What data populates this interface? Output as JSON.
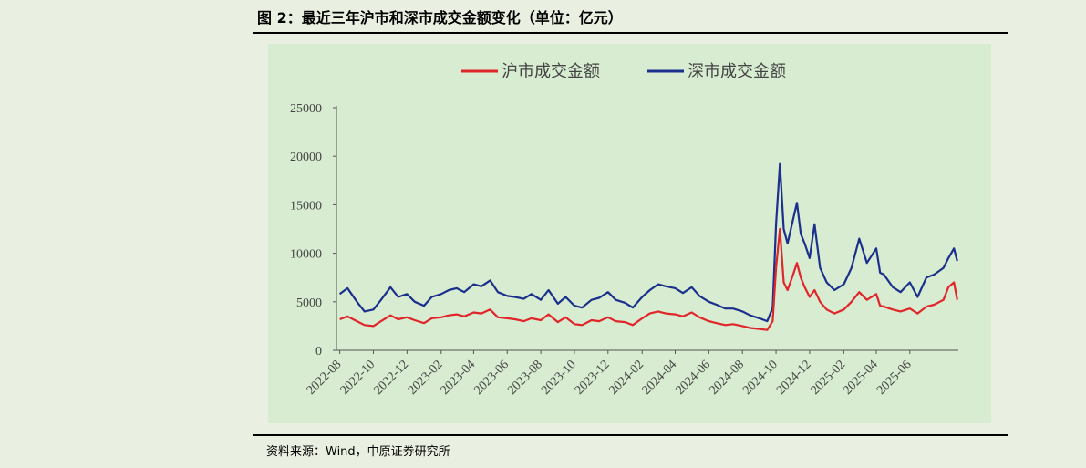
{
  "figure": {
    "title": "图 2：最近三年沪市和深市成交金额变化（单位：亿元）",
    "source": "资料来源：Wind，中原证券研究所"
  },
  "chart_data": {
    "type": "line",
    "title": "",
    "xlabel": "",
    "ylabel": "",
    "ylim": [
      0,
      25000
    ],
    "yticks": [
      0,
      5000,
      10000,
      15000,
      20000,
      25000
    ],
    "xticks": [
      "2022-08",
      "2022-10",
      "2022-12",
      "2023-02",
      "2023-04",
      "2023-06",
      "2023-08",
      "2023-10",
      "2023-12",
      "2024-02",
      "2024-04",
      "2024-06",
      "2024-08",
      "2024-10",
      "2024-12",
      "2025-02",
      "2025-04",
      "2025-06"
    ],
    "legend": "top",
    "colors": {
      "sh": "#e0262a",
      "sz": "#1b2f8c"
    },
    "series": [
      {
        "name": "沪市成交金额",
        "x": [
          "2022-08-01",
          "2022-08-15",
          "2022-09-01",
          "2022-09-15",
          "2022-10-01",
          "2022-10-15",
          "2022-11-01",
          "2022-11-15",
          "2022-12-01",
          "2022-12-15",
          "2023-01-01",
          "2023-01-15",
          "2023-02-01",
          "2023-02-15",
          "2023-03-01",
          "2023-03-15",
          "2023-04-01",
          "2023-04-15",
          "2023-05-01",
          "2023-05-15",
          "2023-06-01",
          "2023-06-15",
          "2023-07-01",
          "2023-07-15",
          "2023-08-01",
          "2023-08-15",
          "2023-09-01",
          "2023-09-15",
          "2023-10-01",
          "2023-10-15",
          "2023-11-01",
          "2023-11-15",
          "2023-12-01",
          "2023-12-15",
          "2024-01-01",
          "2024-01-15",
          "2024-02-01",
          "2024-02-15",
          "2024-03-01",
          "2024-03-15",
          "2024-04-01",
          "2024-04-15",
          "2024-05-01",
          "2024-05-15",
          "2024-06-01",
          "2024-06-15",
          "2024-07-01",
          "2024-07-15",
          "2024-08-01",
          "2024-08-15",
          "2024-09-01",
          "2024-09-15",
          "2024-09-25",
          "2024-10-01",
          "2024-10-08",
          "2024-10-15",
          "2024-10-22",
          "2024-11-01",
          "2024-11-08",
          "2024-11-15",
          "2024-11-22",
          "2024-12-01",
          "2024-12-10",
          "2024-12-20",
          "2025-01-01",
          "2025-01-15",
          "2025-02-01",
          "2025-02-15",
          "2025-03-01",
          "2025-03-15",
          "2025-04-01",
          "2025-04-08",
          "2025-04-15",
          "2025-05-01",
          "2025-05-15",
          "2025-06-01",
          "2025-06-15",
          "2025-07-01",
          "2025-07-15",
          "2025-08-01",
          "2025-08-10",
          "2025-08-20",
          "2025-08-26"
        ],
        "values": [
          3200,
          3500,
          3000,
          2600,
          2500,
          3000,
          3600,
          3200,
          3400,
          3100,
          2800,
          3300,
          3400,
          3600,
          3700,
          3500,
          3900,
          3800,
          4200,
          3400,
          3300,
          3200,
          3000,
          3300,
          3100,
          3700,
          2900,
          3400,
          2700,
          2600,
          3100,
          3000,
          3400,
          3000,
          2900,
          2600,
          3300,
          3800,
          4000,
          3800,
          3700,
          3500,
          3900,
          3400,
          3000,
          2800,
          2600,
          2700,
          2500,
          2300,
          2200,
          2100,
          3000,
          8500,
          12500,
          7000,
          6200,
          7800,
          9000,
          7500,
          6500,
          5500,
          6200,
          5000,
          4200,
          3800,
          4200,
          5000,
          6000,
          5200,
          5800,
          4600,
          4500,
          4200,
          4000,
          4300,
          3800,
          4500,
          4700,
          5200,
          6500,
          7000,
          5200
        ]
      },
      {
        "name": "深市成交金额",
        "x": [
          "2022-08-01",
          "2022-08-15",
          "2022-09-01",
          "2022-09-15",
          "2022-10-01",
          "2022-10-15",
          "2022-11-01",
          "2022-11-15",
          "2022-12-01",
          "2022-12-15",
          "2023-01-01",
          "2023-01-15",
          "2023-02-01",
          "2023-02-15",
          "2023-03-01",
          "2023-03-15",
          "2023-04-01",
          "2023-04-15",
          "2023-05-01",
          "2023-05-15",
          "2023-06-01",
          "2023-06-15",
          "2023-07-01",
          "2023-07-15",
          "2023-08-01",
          "2023-08-15",
          "2023-09-01",
          "2023-09-15",
          "2023-10-01",
          "2023-10-15",
          "2023-11-01",
          "2023-11-15",
          "2023-12-01",
          "2023-12-15",
          "2024-01-01",
          "2024-01-15",
          "2024-02-01",
          "2024-02-15",
          "2024-03-01",
          "2024-03-15",
          "2024-04-01",
          "2024-04-15",
          "2024-05-01",
          "2024-05-15",
          "2024-06-01",
          "2024-06-15",
          "2024-07-01",
          "2024-07-15",
          "2024-08-01",
          "2024-08-15",
          "2024-09-01",
          "2024-09-15",
          "2024-09-25",
          "2024-10-01",
          "2024-10-08",
          "2024-10-15",
          "2024-10-22",
          "2024-11-01",
          "2024-11-08",
          "2024-11-15",
          "2024-11-22",
          "2024-12-01",
          "2024-12-10",
          "2024-12-20",
          "2025-01-01",
          "2025-01-15",
          "2025-02-01",
          "2025-02-15",
          "2025-03-01",
          "2025-03-15",
          "2025-04-01",
          "2025-04-08",
          "2025-04-15",
          "2025-05-01",
          "2025-05-15",
          "2025-06-01",
          "2025-06-15",
          "2025-07-01",
          "2025-07-15",
          "2025-08-01",
          "2025-08-10",
          "2025-08-20",
          "2025-08-26"
        ],
        "values": [
          5800,
          6400,
          5000,
          4000,
          4200,
          5200,
          6500,
          5500,
          5800,
          5000,
          4600,
          5500,
          5800,
          6200,
          6400,
          6000,
          6800,
          6600,
          7200,
          6000,
          5600,
          5500,
          5300,
          5800,
          5200,
          6200,
          4800,
          5500,
          4600,
          4400,
          5200,
          5400,
          6000,
          5200,
          4900,
          4400,
          5500,
          6200,
          6800,
          6600,
          6400,
          5900,
          6500,
          5600,
          5000,
          4700,
          4300,
          4300,
          4000,
          3600,
          3300,
          3000,
          4400,
          13000,
          19200,
          12500,
          11000,
          13500,
          15200,
          12000,
          11000,
          9500,
          13000,
          8500,
          7000,
          6200,
          6800,
          8500,
          11500,
          9000,
          10500,
          8000,
          7800,
          6500,
          6000,
          7000,
          5500,
          7500,
          7800,
          8500,
          9500,
          10500,
          9200
        ]
      }
    ]
  }
}
